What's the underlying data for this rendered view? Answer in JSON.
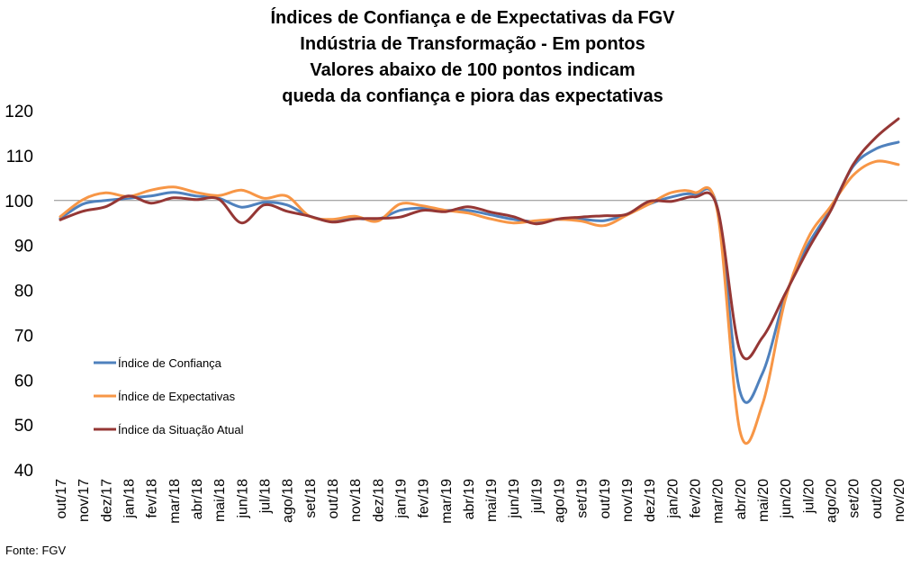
{
  "title_lines": [
    "Índices de Confiança e de Expectativas da FGV",
    "Indústria de Transformação - Em pontos",
    "Valores abaixo de 100 pontos indicam",
    "queda da confiança e piora das expectativas"
  ],
  "source": "Fonte: FGV",
  "chart_data": {
    "type": "line",
    "categories": [
      "out/17",
      "nov/17",
      "dez/17",
      "jan/18",
      "fev/18",
      "mar/18",
      "abr/18",
      "mai/18",
      "jun/18",
      "jul/18",
      "ago/18",
      "set/18",
      "out/18",
      "nov/18",
      "dez/18",
      "jan/19",
      "fev/19",
      "mar/19",
      "abr/19",
      "mai/19",
      "jun/19",
      "jul/19",
      "ago/19",
      "set/19",
      "out/19",
      "nov/19",
      "dez/19",
      "jan/20",
      "fev/20",
      "mar/20",
      "abr/20",
      "mai/20",
      "jun/20",
      "jul/20",
      "ago/20",
      "set/20",
      "out/20",
      "nov/20"
    ],
    "ylim": [
      40,
      120
    ],
    "yticks": [
      40,
      50,
      60,
      70,
      80,
      90,
      100,
      110,
      120
    ],
    "reference_line": 100,
    "legend_position": "left-center",
    "grid": false,
    "series": [
      {
        "name": "Índice de Confiança",
        "color": "#4f81bd",
        "values": [
          96.0,
          99.2,
          100.0,
          100.5,
          101.0,
          101.8,
          101.0,
          100.5,
          98.5,
          99.6,
          99.0,
          96.5,
          95.5,
          96.0,
          95.8,
          97.8,
          98.3,
          97.8,
          97.8,
          96.8,
          95.8,
          95.3,
          95.8,
          95.8,
          95.5,
          96.9,
          99.2,
          100.8,
          101.4,
          98.5,
          57.5,
          61.5,
          78.6,
          90.0,
          98.0,
          107.6,
          111.5,
          113.0
        ]
      },
      {
        "name": "Índice de Expectativas",
        "color": "#f79646",
        "values": [
          96.4,
          100.2,
          101.7,
          100.9,
          102.3,
          103.0,
          101.8,
          101.1,
          102.3,
          100.5,
          101.0,
          96.5,
          95.8,
          96.5,
          95.4,
          99.2,
          98.8,
          97.8,
          97.2,
          95.9,
          95.0,
          95.5,
          95.8,
          95.4,
          94.4,
          96.7,
          99.2,
          101.8,
          101.8,
          97.8,
          48.7,
          54.6,
          77.8,
          91.5,
          98.6,
          105.6,
          108.7,
          108.0
        ]
      },
      {
        "name": "Índice da Situação Atual",
        "color": "#953735",
        "values": [
          95.7,
          97.6,
          98.6,
          101.0,
          99.4,
          100.6,
          100.2,
          100.3,
          95.0,
          99.0,
          97.6,
          96.5,
          95.2,
          95.9,
          96.0,
          96.3,
          97.8,
          97.5,
          98.6,
          97.4,
          96.4,
          94.8,
          95.9,
          96.3,
          96.6,
          96.9,
          99.8,
          99.8,
          100.8,
          98.5,
          66.6,
          69.5,
          79.2,
          89.0,
          97.6,
          108.0,
          114.0,
          118.2
        ]
      }
    ]
  }
}
